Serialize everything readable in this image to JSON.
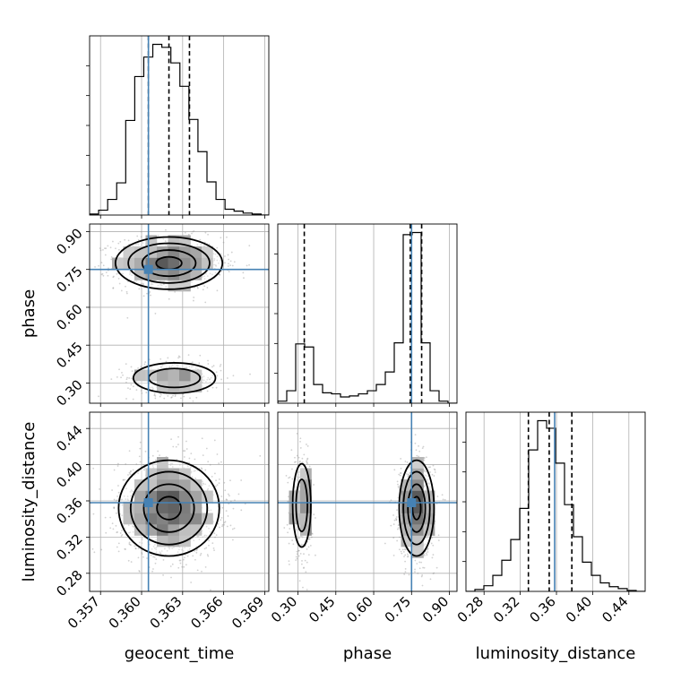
{
  "chart_data": {
    "type": "corner",
    "parameters": [
      "geocent_time",
      "phase",
      "luminosity_distance"
    ],
    "colors": {
      "line": "#000000",
      "truth": "#4682b4",
      "grid": "#b0b0b0",
      "scatter": "#9a9a9a"
    },
    "truths": {
      "geocent_time": 0.3605,
      "phase": 0.75,
      "luminosity_distance": 0.358
    },
    "quantiles": {
      "geocent_time": [
        0.3605,
        0.362,
        0.3635
      ],
      "phase": [
        0.325,
        0.745,
        0.79
      ],
      "luminosity_distance": [
        0.329,
        0.352,
        0.377
      ]
    },
    "axes": {
      "geocent_time": {
        "range": [
          0.3562,
          0.3693
        ],
        "ticks": [
          0.357,
          0.36,
          0.363,
          0.366,
          0.369
        ],
        "tick_labels": [
          "0.357",
          "0.360",
          "0.363",
          "0.366",
          "0.369"
        ]
      },
      "phase": {
        "range": [
          0.22,
          0.93
        ],
        "ticks": [
          0.3,
          0.45,
          0.6,
          0.75,
          0.9
        ],
        "tick_labels": [
          "0.30",
          "0.45",
          "0.60",
          "0.75",
          "0.90"
        ]
      },
      "luminosity_distance": {
        "range": [
          0.26,
          0.458
        ],
        "ticks": [
          0.28,
          0.32,
          0.36,
          0.4,
          0.44
        ],
        "tick_labels": [
          "0.28",
          "0.32",
          "0.36",
          "0.40",
          "0.44"
        ]
      }
    },
    "histograms": {
      "geocent_time": {
        "edges": [
          0.3562,
          0.35686,
          0.35752,
          0.35818,
          0.35884,
          0.3595,
          0.36016,
          0.36082,
          0.36148,
          0.36214,
          0.3628,
          0.36346,
          0.36412,
          0.36478,
          0.36544,
          0.3661,
          0.36676,
          0.36742,
          0.36808,
          0.36874,
          0.3693
        ],
        "counts": [
          1,
          5,
          16,
          33,
          97,
          142,
          162,
          175,
          172,
          156,
          132,
          98,
          65,
          34,
          16,
          6,
          4,
          2,
          1,
          0
        ]
      },
      "phase": {
        "edges": [
          0.22,
          0.2555,
          0.291,
          0.3265,
          0.362,
          0.3975,
          0.433,
          0.4685,
          0.504,
          0.5395,
          0.575,
          0.6105,
          0.646,
          0.6815,
          0.717,
          0.7525,
          0.788,
          0.8235,
          0.859,
          0.8945,
          0.93
        ],
        "counts": [
          2,
          12,
          57,
          54,
          18,
          10,
          9,
          6,
          7,
          9,
          12,
          18,
          30,
          58,
          162,
          164,
          58,
          12,
          2,
          0
        ]
      },
      "luminosity_distance": {
        "edges": [
          0.26,
          0.2699,
          0.2798,
          0.2897,
          0.2996,
          0.3095,
          0.3194,
          0.3293,
          0.3392,
          0.3491,
          0.359,
          0.3689,
          0.3788,
          0.3887,
          0.3986,
          0.4085,
          0.4184,
          0.4283,
          0.4382,
          0.4481,
          0.458
        ],
        "counts": [
          0,
          2,
          6,
          17,
          33,
          55,
          88,
          150,
          181,
          173,
          136,
          92,
          58,
          31,
          17,
          9,
          5,
          3,
          1,
          0
        ]
      }
    },
    "modes_2d": [
      {
        "x": "geocent_time",
        "y": "phase",
        "blobs": [
          {
            "cx": 0.362,
            "cy": 0.775,
            "sx": 0.0017,
            "sy": 0.045,
            "w": 0.73
          },
          {
            "cx": 0.3624,
            "cy": 0.32,
            "sx": 0.0015,
            "sy": 0.03,
            "w": 0.27
          }
        ]
      },
      {
        "x": "geocent_time",
        "y": "luminosity_distance",
        "blobs": [
          {
            "cx": 0.362,
            "cy": 0.352,
            "sx": 0.0016,
            "sy": 0.023,
            "w": 1.0
          }
        ]
      },
      {
        "x": "phase",
        "y": "luminosity_distance",
        "blobs": [
          {
            "cx": 0.315,
            "cy": 0.355,
            "sx": 0.018,
            "sy": 0.023,
            "w": 0.3
          },
          {
            "cx": 0.77,
            "cy": 0.352,
            "sx": 0.03,
            "sy": 0.023,
            "w": 0.7
          }
        ]
      }
    ]
  }
}
